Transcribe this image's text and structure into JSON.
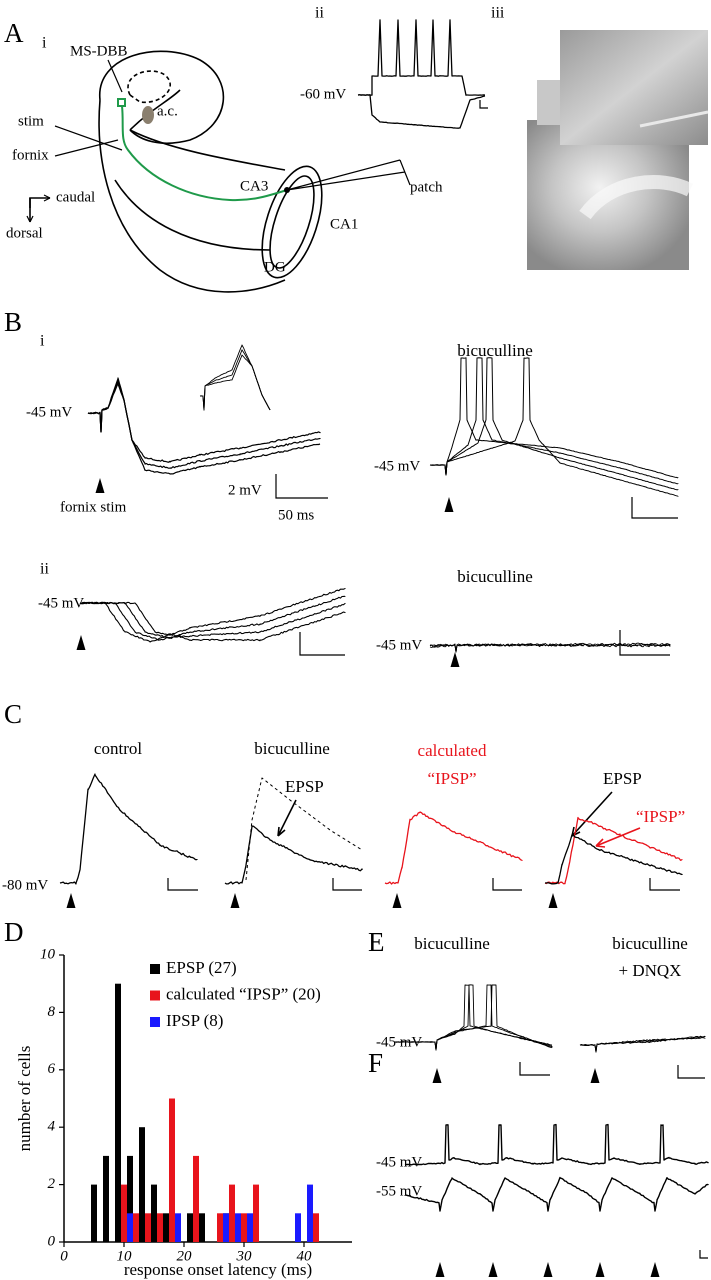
{
  "panel_labels": [
    "A",
    "B",
    "C",
    "D",
    "E",
    "F"
  ],
  "panel_a": {
    "sub": [
      "i",
      "ii",
      "iii"
    ],
    "labels": [
      "MS-DBB",
      "a.c.",
      "stim",
      "fornix",
      "CA3",
      "patch",
      "CA1",
      "DG",
      "caudal",
      "dorsal"
    ],
    "voltage": "-60 mV"
  },
  "panel_b": {
    "sub": [
      "i",
      "ii"
    ],
    "voltages": [
      "-45 mV",
      "-45 mV",
      "-45 mV",
      "-45 mV"
    ],
    "stim": "fornix stim",
    "scale": [
      "2 mV",
      "50 ms"
    ],
    "drug": [
      "bicuculline",
      "bicuculline"
    ]
  },
  "panel_c": {
    "titles": [
      "control",
      "bicuculline",
      "calculated",
      "“IPSP”"
    ],
    "annotations": [
      "EPSP",
      "EPSP",
      "“IPSP”"
    ],
    "voltage": "-80 mV"
  },
  "panel_e": {
    "titles": [
      "bicuculline",
      "bicuculline",
      "+ DNQX"
    ],
    "voltage": "-45 mV"
  },
  "panel_f": {
    "voltages": [
      "-45 mV",
      "-55 mV"
    ]
  },
  "chart_data": {
    "type": "bar",
    "xlabel": "response onset latency (ms)",
    "ylabel": "number of cells",
    "x": [
      6,
      8,
      10,
      12,
      14,
      16,
      18,
      20,
      22,
      24,
      26,
      28,
      30,
      32,
      34,
      36,
      38,
      40,
      42
    ],
    "series": [
      {
        "name": "EPSP (27)",
        "color": "#000000",
        "values": [
          2,
          3,
          9,
          3,
          4,
          2,
          1,
          0,
          1,
          1,
          0,
          1,
          0,
          0,
          0,
          0,
          0,
          0,
          0
        ]
      },
      {
        "name": "calculated “IPSP” (20)",
        "color": "#e8141c",
        "values": [
          0,
          0,
          2,
          1,
          1,
          1,
          5,
          0,
          3,
          0,
          1,
          2,
          1,
          2,
          0,
          0,
          0,
          0,
          1
        ]
      },
      {
        "name": "IPSP (8)",
        "color": "#1a1aff",
        "values": [
          0,
          0,
          1,
          0,
          0,
          0,
          1,
          0,
          0,
          0,
          1,
          1,
          1,
          0,
          0,
          0,
          1,
          2,
          0
        ]
      }
    ],
    "xlim": [
      0,
      48
    ],
    "xticks": [
      0,
      10,
      20,
      30,
      40
    ],
    "ylim": [
      0,
      10
    ],
    "yticks": [
      0,
      2,
      4,
      6,
      8,
      10
    ]
  }
}
